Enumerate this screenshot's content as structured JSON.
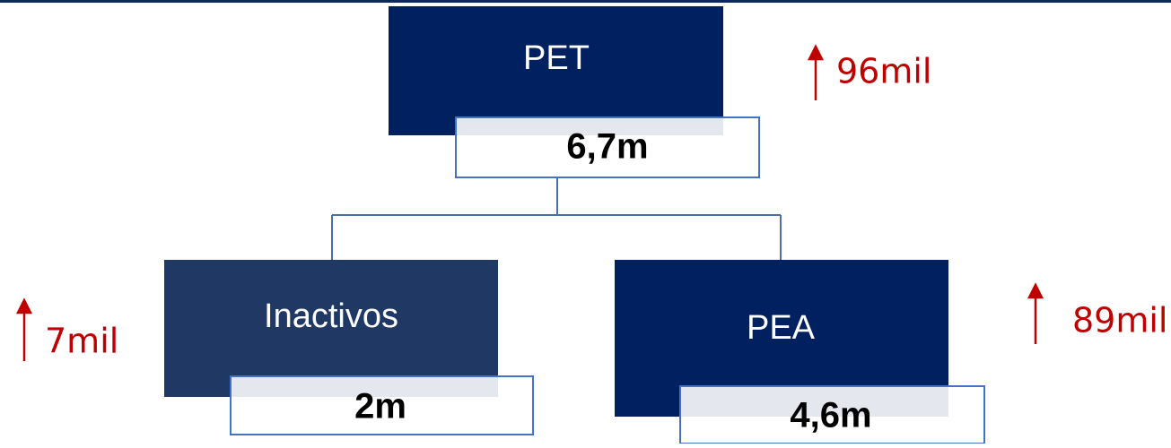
{
  "nodes": [
    {
      "label": "PET",
      "value": "6,7m",
      "change": "96mil"
    },
    {
      "label": "Inactivos",
      "value": "2m",
      "change": "7mil"
    },
    {
      "label": "PEA",
      "value": "4,6m",
      "change": "89mil"
    }
  ]
}
